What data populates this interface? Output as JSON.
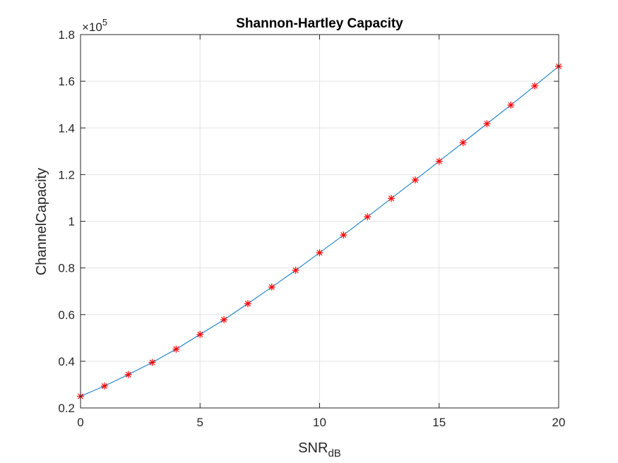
{
  "chart_data": {
    "type": "line",
    "title": "Shannon-Hartley Capacity",
    "xlabel_main": "SNR",
    "xlabel_sub": "dB",
    "ylabel": "ChannelCapacity",
    "y_exponent_base": "×10",
    "y_exponent_power": "5",
    "xlim": [
      0,
      20
    ],
    "ylim": [
      0.2,
      1.8
    ],
    "x_ticks": [
      0,
      5,
      10,
      15,
      20
    ],
    "x_tick_labels": [
      "0",
      "5",
      "10",
      "15",
      "20"
    ],
    "y_ticks": [
      0.2,
      0.4,
      0.6,
      0.8,
      1.0,
      1.2,
      1.4,
      1.6,
      1.8
    ],
    "y_tick_labels": [
      "0.2",
      "0.4",
      "0.6",
      "0.8",
      "1",
      "1.2",
      "1.4",
      "1.6",
      "1.8"
    ],
    "grid": true,
    "series": [
      {
        "style": "line",
        "color": "#0072BD",
        "x": [
          0,
          1,
          2,
          3,
          4,
          5,
          6,
          7,
          8,
          9,
          10,
          11,
          12,
          13,
          14,
          15,
          16,
          17,
          18,
          19,
          20
        ],
        "values": [
          0.25,
          0.294,
          0.343,
          0.395,
          0.452,
          0.515,
          0.578,
          0.647,
          0.718,
          0.79,
          0.865,
          0.941,
          1.019,
          1.098,
          1.177,
          1.257,
          1.337,
          1.418,
          1.498,
          1.58,
          1.664
        ]
      },
      {
        "style": "marker",
        "marker": "asterisk",
        "color": "#FF0000",
        "x": [
          0,
          1,
          2,
          3,
          4,
          5,
          6,
          7,
          8,
          9,
          10,
          11,
          12,
          13,
          14,
          15,
          16,
          17,
          18,
          19,
          20
        ],
        "values": [
          0.25,
          0.294,
          0.343,
          0.395,
          0.452,
          0.515,
          0.578,
          0.647,
          0.718,
          0.79,
          0.865,
          0.941,
          1.019,
          1.098,
          1.177,
          1.257,
          1.337,
          1.418,
          1.498,
          1.58,
          1.664
        ]
      }
    ]
  }
}
